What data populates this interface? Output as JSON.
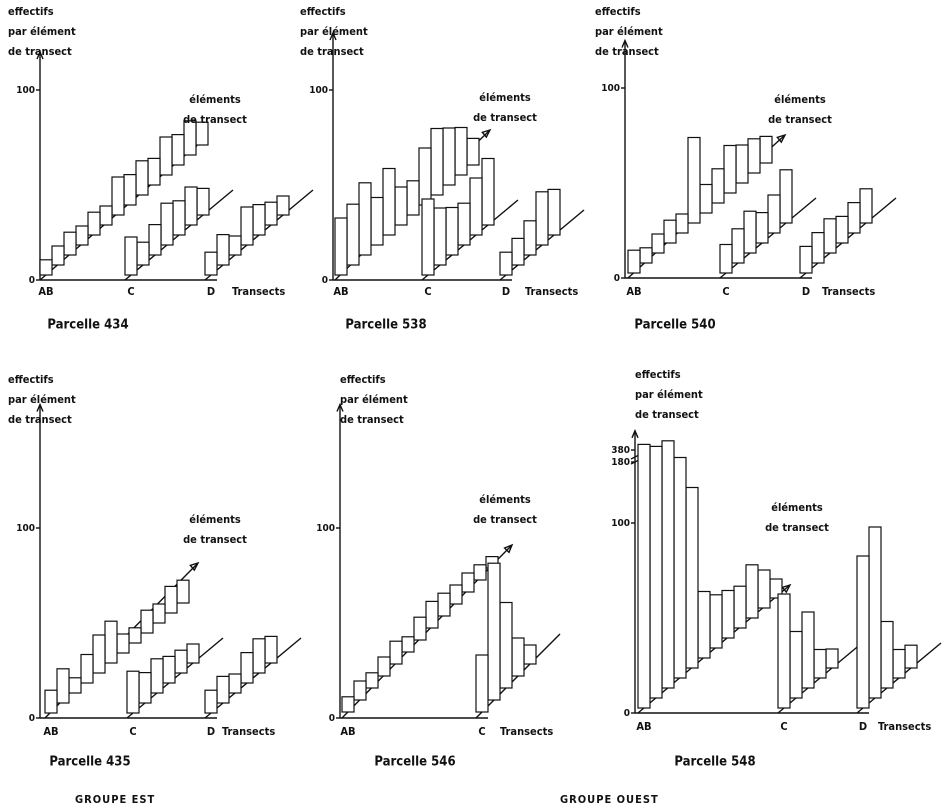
{
  "chart_data": [
    {
      "type": "bar3d",
      "title": "Parcelle 434",
      "y_label": [
        "effectifs",
        "par élément",
        "de transect"
      ],
      "depth_label": [
        "éléments",
        "de transect"
      ],
      "x_label": "Transects",
      "categories": [
        "AB",
        "C",
        "D"
      ],
      "values": [
        [
          8,
          10,
          12,
          10,
          12,
          10,
          20,
          16,
          18,
          14,
          20,
          16,
          18,
          12
        ],
        [
          20,
          12,
          16,
          22,
          18,
          20,
          14
        ],
        [
          12,
          16,
          10,
          20,
          16,
          12,
          10
        ]
      ],
      "ylim": [
        0,
        120
      ],
      "yticks": [
        0,
        100
      ]
    },
    {
      "type": "bar3d",
      "title": "Parcelle 538",
      "y_label": [
        "effectifs",
        "par élément",
        "de transect"
      ],
      "depth_label": [
        "éléments",
        "de transect"
      ],
      "x_label": "Transects",
      "categories": [
        "AB",
        "C",
        "D"
      ],
      "values": [
        [
          30,
          32,
          38,
          25,
          35,
          20,
          18,
          30,
          35,
          30,
          25,
          14
        ],
        [
          40,
          30,
          25,
          22,
          30,
          35
        ],
        [
          12,
          14,
          18,
          28,
          24
        ]
      ],
      "ylim": [
        0,
        130
      ],
      "yticks": [
        0,
        100
      ]
    },
    {
      "type": "bar3d",
      "title": "Parcelle 540",
      "y_label": [
        "effectifs",
        "par élément",
        "de transect"
      ],
      "depth_label": [
        "éléments",
        "de transect"
      ],
      "x_label": "Transects",
      "categories": [
        "AB",
        "C",
        "D"
      ],
      "values": [
        [
          12,
          8,
          10,
          12,
          10,
          45,
          15,
          18,
          25,
          20,
          18,
          14
        ],
        [
          15,
          18,
          22,
          16,
          20,
          28
        ],
        [
          14,
          16,
          18,
          14,
          16,
          18
        ]
      ],
      "ylim": [
        0,
        125
      ],
      "yticks": [
        0,
        100
      ]
    },
    {
      "type": "bar3d",
      "title": "Parcelle 435",
      "y_label": [
        "effectifs",
        "par élément",
        "de transect"
      ],
      "depth_label": [
        "éléments",
        "de transect"
      ],
      "x_label": "Transects",
      "categories": [
        "AB",
        "C",
        "D"
      ],
      "values": [
        [
          12,
          18,
          8,
          15,
          20,
          22,
          10,
          8,
          12,
          10,
          14,
          12
        ],
        [
          22,
          16,
          18,
          14,
          12,
          10
        ],
        [
          12,
          14,
          10,
          16,
          18,
          14
        ]
      ],
      "ylim": [
        0,
        165
      ],
      "yticks": [
        0,
        100
      ]
    },
    {
      "type": "bar3d",
      "title": "Parcelle 546",
      "y_label": [
        "effectifs",
        "par élément",
        "de transect"
      ],
      "depth_label": [
        "éléments",
        "de transect"
      ],
      "x_label": "Transects",
      "categories": [
        "AB",
        "C"
      ],
      "values": [
        [
          8,
          10,
          8,
          10,
          12,
          8,
          12,
          14,
          12,
          10,
          10,
          8,
          6
        ],
        [
          30,
          72,
          45,
          20,
          10
        ]
      ],
      "ylim": [
        0,
        165
      ],
      "yticks": [
        0,
        100
      ]
    },
    {
      "type": "bar3d",
      "title": "Parcelle 548",
      "y_label": [
        "effectifs",
        "par élément",
        "de transect"
      ],
      "depth_label": [
        "éléments",
        "de transect"
      ],
      "x_label": "Transects",
      "categories": [
        "AB",
        "C",
        "D"
      ],
      "values": [
        [
          390,
          190,
          175,
          140,
          95,
          35,
          28,
          25,
          22,
          28,
          20,
          10
        ],
        [
          60,
          35,
          40,
          15,
          10
        ],
        [
          80,
          90,
          35,
          15,
          12
        ]
      ],
      "ylim": [
        0,
        700
      ],
      "yticks": [
        0,
        100,
        180,
        380
      ]
    }
  ],
  "groups": [
    "GROUPE EST",
    "GROUPE OUEST"
  ]
}
